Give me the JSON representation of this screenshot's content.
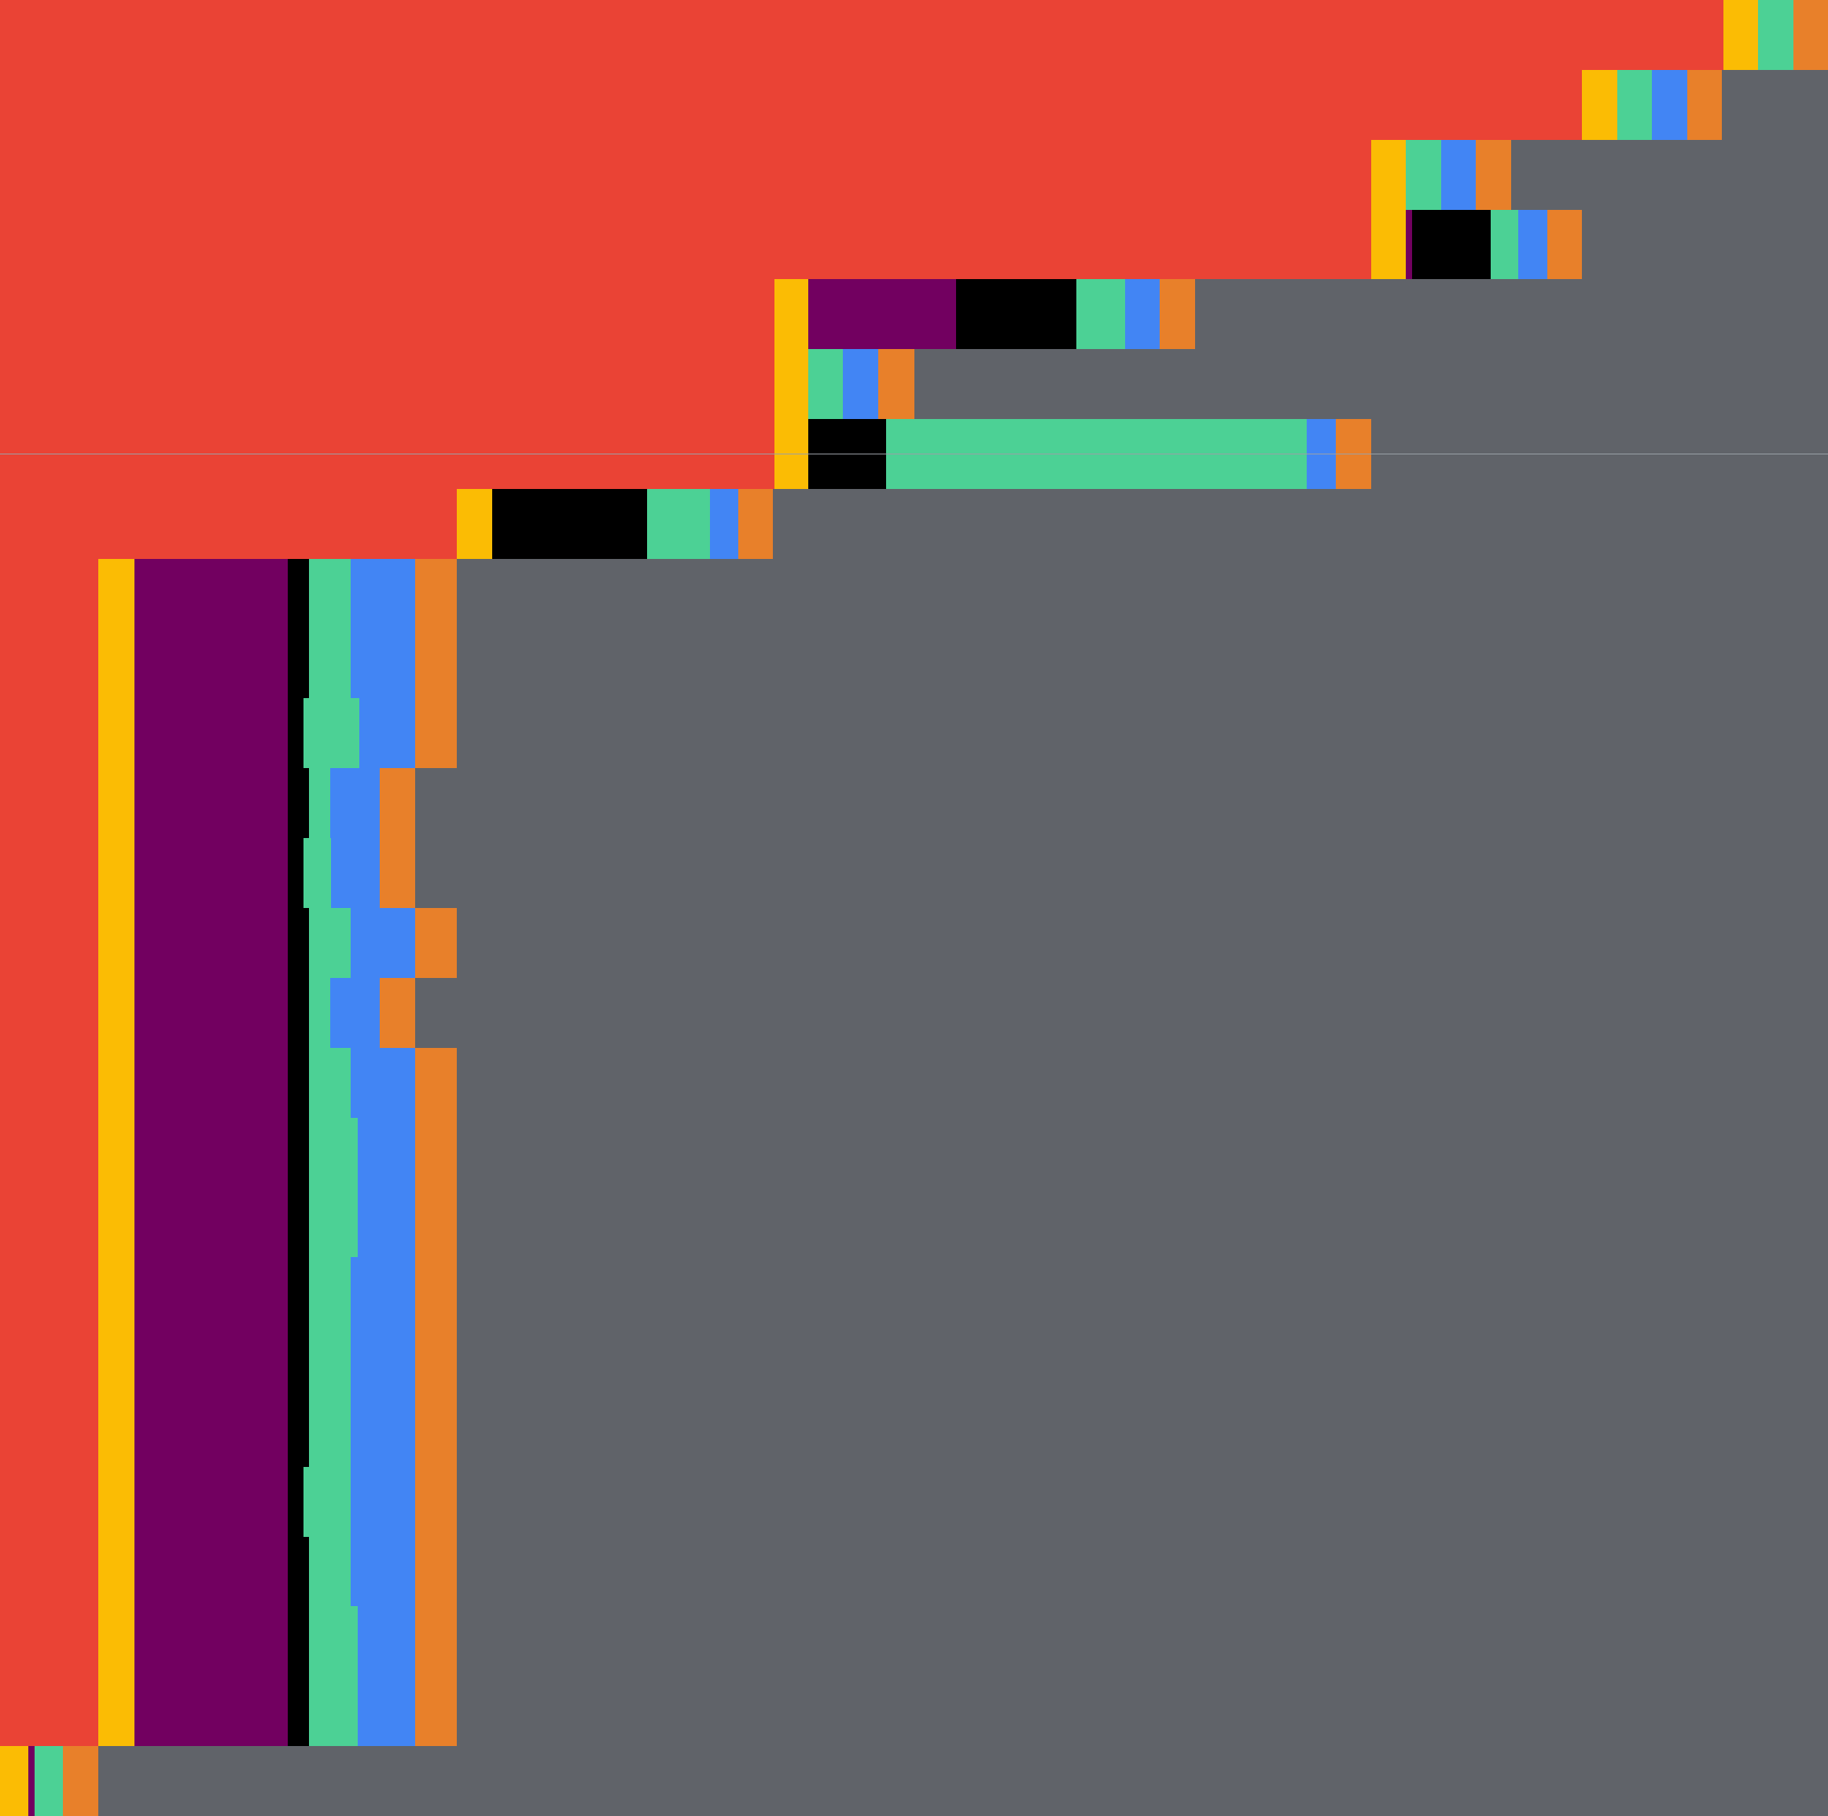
{
  "colors": {
    "background": "#606369",
    "red": "#EA4335",
    "yellow": "#FBBC04",
    "purple": "#720060",
    "black": "#000000",
    "green": "#4CD195",
    "blue": "#4285F4",
    "orange": "#E8802A",
    "divider": "#9AA0A6"
  },
  "bar_total": 1568,
  "rows": [
    [
      [
        "red",
        1478
      ],
      [
        "yellow",
        30
      ],
      [
        "green",
        30
      ],
      [
        "orange",
        30
      ]
    ],
    [
      [
        "red",
        1357
      ],
      [
        "yellow",
        30
      ],
      [
        "green",
        30
      ],
      [
        "blue",
        30
      ],
      [
        "orange",
        30
      ]
    ],
    [
      [
        "red",
        1176
      ],
      [
        "yellow",
        30
      ],
      [
        "green",
        30
      ],
      [
        "blue",
        30
      ],
      [
        "orange",
        30
      ]
    ],
    [
      [
        "red",
        1176
      ],
      [
        "yellow",
        30
      ],
      [
        "purple",
        5
      ],
      [
        "black",
        68
      ],
      [
        "green",
        23
      ],
      [
        "blue",
        25
      ],
      [
        "orange",
        30
      ]
    ],
    [
      [
        "red",
        664
      ],
      [
        "yellow",
        29
      ],
      [
        "purple",
        127
      ],
      [
        "black",
        103
      ],
      [
        "green",
        42
      ],
      [
        "blue",
        30
      ],
      [
        "orange",
        30
      ]
    ],
    [
      [
        "red",
        664
      ],
      [
        "yellow",
        29
      ],
      [
        "green",
        30
      ],
      [
        "blue",
        30
      ],
      [
        "orange",
        31
      ]
    ],
    [
      [
        "red",
        664
      ],
      [
        "yellow",
        29
      ],
      [
        "black",
        67
      ],
      [
        "green",
        361
      ],
      [
        "blue",
        25
      ],
      [
        "orange",
        30
      ]
    ],
    [
      [
        "red",
        392
      ],
      [
        "yellow",
        30
      ],
      [
        "black",
        133
      ],
      [
        "green",
        54
      ],
      [
        "blue",
        24
      ],
      [
        "orange",
        30
      ]
    ],
    [
      [
        "red",
        84
      ],
      [
        "yellow",
        31
      ],
      [
        "purple",
        132
      ],
      [
        "black",
        18
      ],
      [
        "green",
        36
      ],
      [
        "blue",
        55
      ],
      [
        "orange",
        36
      ]
    ],
    [
      [
        "red",
        84
      ],
      [
        "yellow",
        31
      ],
      [
        "purple",
        132
      ],
      [
        "black",
        18
      ],
      [
        "green",
        36
      ],
      [
        "blue",
        55
      ],
      [
        "orange",
        36
      ]
    ],
    [
      [
        "red",
        84
      ],
      [
        "yellow",
        31
      ],
      [
        "purple",
        132
      ],
      [
        "black",
        13
      ],
      [
        "green",
        48
      ],
      [
        "blue",
        48
      ],
      [
        "orange",
        36
      ]
    ],
    [
      [
        "red",
        84
      ],
      [
        "yellow",
        31
      ],
      [
        "purple",
        132
      ],
      [
        "black",
        18
      ],
      [
        "green",
        18
      ],
      [
        "blue",
        43
      ],
      [
        "orange",
        30
      ]
    ],
    [
      [
        "red",
        84
      ],
      [
        "yellow",
        31
      ],
      [
        "purple",
        132
      ],
      [
        "black",
        13
      ],
      [
        "green",
        24
      ],
      [
        "blue",
        42
      ],
      [
        "orange",
        30
      ]
    ],
    [
      [
        "red",
        84
      ],
      [
        "yellow",
        31
      ],
      [
        "purple",
        132
      ],
      [
        "black",
        18
      ],
      [
        "green",
        36
      ],
      [
        "blue",
        55
      ],
      [
        "orange",
        36
      ]
    ],
    [
      [
        "red",
        84
      ],
      [
        "yellow",
        31
      ],
      [
        "purple",
        132
      ],
      [
        "black",
        18
      ],
      [
        "green",
        18
      ],
      [
        "blue",
        43
      ],
      [
        "orange",
        30
      ]
    ],
    [
      [
        "red",
        84
      ],
      [
        "yellow",
        31
      ],
      [
        "purple",
        132
      ],
      [
        "black",
        18
      ],
      [
        "green",
        36
      ],
      [
        "blue",
        55
      ],
      [
        "orange",
        36
      ]
    ],
    [
      [
        "red",
        84
      ],
      [
        "yellow",
        31
      ],
      [
        "purple",
        132
      ],
      [
        "black",
        18
      ],
      [
        "green",
        42
      ],
      [
        "blue",
        49
      ],
      [
        "orange",
        36
      ]
    ],
    [
      [
        "red",
        84
      ],
      [
        "yellow",
        31
      ],
      [
        "purple",
        132
      ],
      [
        "black",
        18
      ],
      [
        "green",
        42
      ],
      [
        "blue",
        49
      ],
      [
        "orange",
        36
      ]
    ],
    [
      [
        "red",
        84
      ],
      [
        "yellow",
        31
      ],
      [
        "purple",
        132
      ],
      [
        "black",
        18
      ],
      [
        "green",
        36
      ],
      [
        "blue",
        55
      ],
      [
        "orange",
        36
      ]
    ],
    [
      [
        "red",
        84
      ],
      [
        "yellow",
        31
      ],
      [
        "purple",
        132
      ],
      [
        "black",
        18
      ],
      [
        "green",
        36
      ],
      [
        "blue",
        55
      ],
      [
        "orange",
        36
      ]
    ],
    [
      [
        "red",
        84
      ],
      [
        "yellow",
        31
      ],
      [
        "purple",
        132
      ],
      [
        "black",
        18
      ],
      [
        "green",
        36
      ],
      [
        "blue",
        55
      ],
      [
        "orange",
        36
      ]
    ],
    [
      [
        "red",
        84
      ],
      [
        "yellow",
        31
      ],
      [
        "purple",
        132
      ],
      [
        "black",
        13
      ],
      [
        "green",
        41
      ],
      [
        "blue",
        55
      ],
      [
        "orange",
        36
      ]
    ],
    [
      [
        "red",
        84
      ],
      [
        "yellow",
        31
      ],
      [
        "purple",
        132
      ],
      [
        "black",
        18
      ],
      [
        "green",
        36
      ],
      [
        "blue",
        55
      ],
      [
        "orange",
        36
      ]
    ],
    [
      [
        "red",
        84
      ],
      [
        "yellow",
        31
      ],
      [
        "purple",
        132
      ],
      [
        "black",
        18
      ],
      [
        "green",
        42
      ],
      [
        "blue",
        49
      ],
      [
        "orange",
        36
      ]
    ],
    [
      [
        "red",
        84
      ],
      [
        "yellow",
        31
      ],
      [
        "purple",
        132
      ],
      [
        "black",
        18
      ],
      [
        "green",
        42
      ],
      [
        "blue",
        49
      ],
      [
        "orange",
        36
      ]
    ],
    [
      [
        "yellow",
        24
      ],
      [
        "purple",
        6
      ],
      [
        "green",
        24
      ],
      [
        "orange",
        30
      ]
    ]
  ]
}
